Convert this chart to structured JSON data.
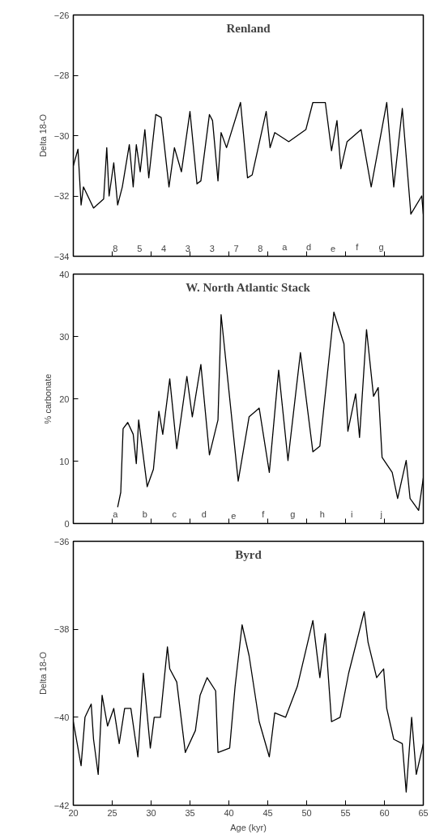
{
  "chart_data": [
    {
      "type": "line",
      "title": "Renland",
      "ylabel": "Delta 18-O",
      "xlim": [
        20,
        65
      ],
      "xticks": [
        20,
        25,
        30,
        35,
        40,
        45,
        50,
        55,
        60,
        65
      ],
      "ylim": [
        -34,
        -26
      ],
      "yticks": [
        -34,
        -32,
        -30,
        -28,
        -26
      ],
      "tick_labels": "y",
      "grid": false,
      "series": [
        {
          "color": "#000000",
          "x": [
            20,
            20.6,
            21.0,
            21.3,
            22.6,
            23.9,
            24.3,
            24.6,
            25.2,
            25.7,
            26.3,
            27.2,
            27.7,
            28.1,
            28.6,
            29.2,
            29.7,
            30.6,
            31.3,
            32.3,
            33.0,
            33.9,
            35.0,
            35.9,
            36.4,
            37.5,
            37.9,
            38.6,
            39.0,
            39.7,
            41.5,
            42.4,
            43.0,
            44.8,
            45.3,
            45.9,
            47.7,
            49.9,
            50.8,
            52.4,
            53.2,
            53.9,
            54.4,
            55.2,
            57.0,
            58.3,
            60.3,
            61.2,
            62.3,
            63.4,
            64.8,
            65
          ],
          "values": [
            -31.0,
            -30.45,
            -32.3,
            -31.7,
            -32.4,
            -32.1,
            -30.4,
            -32.0,
            -30.9,
            -32.3,
            -31.7,
            -30.3,
            -31.7,
            -30.3,
            -31.2,
            -29.8,
            -31.4,
            -29.3,
            -29.4,
            -31.7,
            -30.4,
            -31.2,
            -29.2,
            -31.6,
            -31.5,
            -29.3,
            -29.5,
            -31.5,
            -29.9,
            -30.4,
            -28.9,
            -31.4,
            -31.3,
            -29.2,
            -30.4,
            -29.9,
            -30.2,
            -29.8,
            -28.9,
            -28.9,
            -30.5,
            -29.5,
            -31.1,
            -30.2,
            -29.8,
            -31.7,
            -28.9,
            -31.7,
            -29.1,
            -32.6,
            -32.0,
            -32.6
          ]
        }
      ],
      "annotations": [
        "8",
        "5",
        "4",
        "3",
        "3",
        "7",
        "8",
        "a",
        "d",
        "e",
        "f",
        "g"
      ]
    },
    {
      "type": "line",
      "title": "W. North Atlantic Stack",
      "ylabel": "% carbonate",
      "xlim": [
        20,
        65
      ],
      "xticks": [
        20,
        25,
        30,
        35,
        40,
        45,
        50,
        55,
        60,
        65
      ],
      "ylim": [
        0,
        40
      ],
      "yticks": [
        0,
        10,
        20,
        30,
        40
      ],
      "tick_labels": "y",
      "grid": false,
      "series": [
        {
          "color": "#000000",
          "x": [
            25.7,
            26.1,
            26.4,
            27.0,
            27.7,
            28.1,
            28.4,
            29.5,
            30.3,
            31.0,
            31.5,
            32.4,
            33.3,
            34.6,
            35.3,
            36.4,
            37.5,
            38.6,
            39.0,
            41.2,
            42.6,
            43.9,
            45.2,
            46.4,
            47.6,
            49.2,
            50.8,
            51.7,
            53.5,
            54.8,
            55.3,
            56.3,
            56.8,
            57.7,
            58.6,
            59.2,
            59.7,
            61.0,
            61.7,
            62.8,
            63.3,
            64.4,
            65
          ],
          "values": [
            2.6,
            5.0,
            15.2,
            16.2,
            14.3,
            9.6,
            16.6,
            5.9,
            8.7,
            18.0,
            14.3,
            23.2,
            12.0,
            23.6,
            17.1,
            25.5,
            11.0,
            16.6,
            33.5,
            6.8,
            17.1,
            18.5,
            8.2,
            24.6,
            10.1,
            27.4,
            11.5,
            12.4,
            33.9,
            28.8,
            14.8,
            20.8,
            13.8,
            31.1,
            20.4,
            21.8,
            10.6,
            8.2,
            4.0,
            10.1,
            4.0,
            2.1,
            7.3
          ]
        }
      ],
      "annotations": [
        "a",
        "b",
        "c",
        "d",
        "e",
        "f",
        "g",
        "h",
        "i",
        "j"
      ]
    },
    {
      "type": "line",
      "title": "Byrd",
      "ylabel": "Delta 18-O",
      "xlabel": "Age (kyr)",
      "xlim": [
        20,
        65
      ],
      "xticks": [
        20,
        25,
        30,
        35,
        40,
        45,
        50,
        55,
        60,
        65
      ],
      "ylim": [
        -42,
        -36
      ],
      "yticks": [
        -42,
        -40,
        -38,
        -36
      ],
      "grid": false,
      "series": [
        {
          "color": "#000000",
          "x": [
            20,
            21,
            21.5,
            22.3,
            22.6,
            23.2,
            23.7,
            24.4,
            25.2,
            25.9,
            26.6,
            27.4,
            28.3,
            29.0,
            29.9,
            30.4,
            31.2,
            32.1,
            32.4,
            33.3,
            34.4,
            35.7,
            36.3,
            37.2,
            38.3,
            38.6,
            40.1,
            40.8,
            41.7,
            42.6,
            43.9,
            45.2,
            45.9,
            47.3,
            48.8,
            50.8,
            51.7,
            52.4,
            53.2,
            54.3,
            55.4,
            57.4,
            57.9,
            59.0,
            59.9,
            60.3,
            61.2,
            62.3,
            62.8,
            63.5,
            64.1,
            65
          ],
          "values": [
            -40.1,
            -41.1,
            -40.0,
            -39.7,
            -40.5,
            -41.3,
            -39.5,
            -40.2,
            -39.8,
            -40.6,
            -39.8,
            -39.8,
            -40.9,
            -39.0,
            -40.7,
            -40.0,
            -40.0,
            -38.4,
            -38.9,
            -39.2,
            -40.8,
            -40.3,
            -39.5,
            -39.1,
            -39.4,
            -40.8,
            -40.7,
            -39.3,
            -37.9,
            -38.6,
            -40.1,
            -40.9,
            -39.9,
            -40.0,
            -39.3,
            -37.8,
            -39.1,
            -38.1,
            -40.1,
            -40.0,
            -39.0,
            -37.6,
            -38.3,
            -39.1,
            -38.9,
            -39.8,
            -40.5,
            -40.6,
            -41.7,
            -40.0,
            -41.3,
            -40.6
          ]
        }
      ]
    }
  ]
}
